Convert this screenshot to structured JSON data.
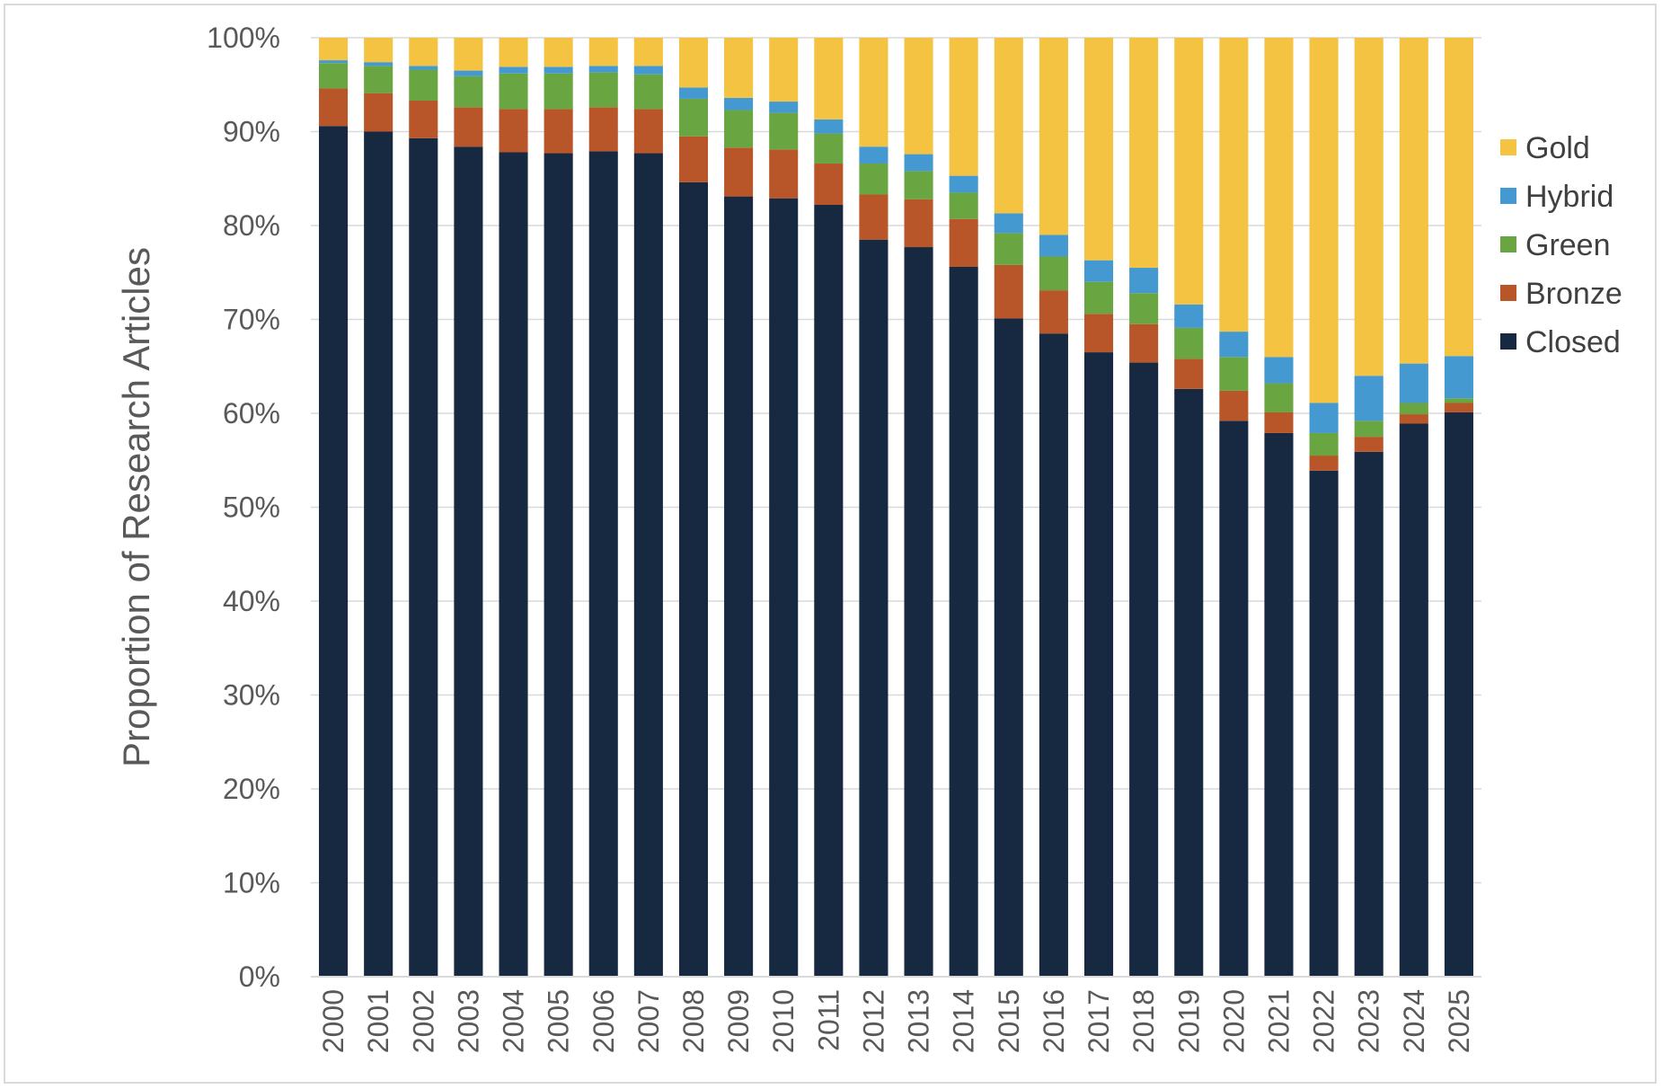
{
  "chart_data": {
    "type": "bar",
    "stacked": true,
    "percent_stacked": true,
    "ylabel": "Proportion of Research Articles",
    "xlabel": "",
    "title": "",
    "ylim": [
      0,
      100
    ],
    "y_ticks": [
      "0%",
      "10%",
      "20%",
      "30%",
      "40%",
      "50%",
      "60%",
      "70%",
      "80%",
      "90%",
      "100%"
    ],
    "grid": "horizontal",
    "legend_position": "right",
    "categories": [
      "2000",
      "2001",
      "2002",
      "2003",
      "2004",
      "2005",
      "2006",
      "2007",
      "2008",
      "2009",
      "2010",
      "2011",
      "2012",
      "2013",
      "2014",
      "2015",
      "2016",
      "2017",
      "2018",
      "2019",
      "2020",
      "2021",
      "2022",
      "2023",
      "2024",
      "2025"
    ],
    "series": [
      {
        "name": "Closed",
        "color": "#172841",
        "values": [
          90.6,
          90.0,
          89.3,
          88.4,
          87.8,
          87.7,
          87.9,
          87.7,
          84.6,
          83.1,
          82.9,
          82.2,
          78.5,
          77.7,
          75.6,
          70.1,
          68.5,
          66.5,
          65.4,
          62.6,
          59.2,
          57.9,
          53.9,
          55.9,
          58.9,
          60.1
        ]
      },
      {
        "name": "Bronze",
        "color": "#B8562A",
        "values": [
          4.0,
          4.1,
          4.0,
          4.2,
          4.6,
          4.7,
          4.7,
          4.7,
          4.9,
          5.2,
          5.2,
          4.4,
          4.8,
          5.1,
          5.1,
          5.7,
          4.6,
          4.1,
          4.1,
          3.2,
          3.2,
          2.2,
          1.6,
          1.6,
          1.0,
          1.0
        ]
      },
      {
        "name": "Green",
        "color": "#69A540",
        "values": [
          2.7,
          2.9,
          3.3,
          3.3,
          3.8,
          3.8,
          3.7,
          3.7,
          4.0,
          4.0,
          3.9,
          3.2,
          3.3,
          3.0,
          2.8,
          3.4,
          3.6,
          3.4,
          3.3,
          3.3,
          3.6,
          3.1,
          2.4,
          1.7,
          1.2,
          0.5
        ]
      },
      {
        "name": "Hybrid",
        "color": "#4499D1",
        "values": [
          0.3,
          0.4,
          0.4,
          0.6,
          0.7,
          0.7,
          0.7,
          0.9,
          1.2,
          1.3,
          1.2,
          1.5,
          1.8,
          1.8,
          1.8,
          2.1,
          2.3,
          2.3,
          2.7,
          2.5,
          2.7,
          2.8,
          3.2,
          4.8,
          4.2,
          4.5
        ]
      },
      {
        "name": "Gold",
        "color": "#F5C342",
        "values": [
          2.4,
          2.6,
          3.0,
          3.5,
          3.1,
          3.1,
          3.0,
          3.0,
          5.3,
          6.4,
          6.8,
          8.7,
          11.6,
          12.4,
          14.7,
          18.7,
          21.0,
          23.7,
          24.5,
          28.4,
          31.3,
          34.0,
          38.9,
          36.0,
          34.7,
          33.9
        ]
      }
    ]
  }
}
